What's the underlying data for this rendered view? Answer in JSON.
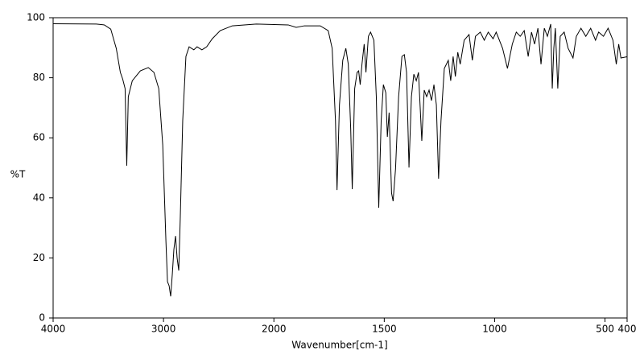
{
  "chart_data": {
    "type": "line",
    "xlabel": "Wavenumber[cm-1]",
    "ylabel": "%T",
    "xlim": [
      4000,
      400
    ],
    "ylim": [
      0,
      100
    ],
    "x_scale_change": {
      "at": 2000,
      "ratio": 2
    },
    "xticks": [
      4000,
      3000,
      2000,
      1500,
      1000,
      500,
      400
    ],
    "yticks": [
      0,
      20,
      40,
      60,
      80,
      100
    ],
    "series": [
      {
        "color": "#000000",
        "x": [
          4000,
          3609,
          3536,
          3478,
          3428,
          3391,
          3370,
          3348,
          3333,
          3319,
          3283,
          3210,
          3138,
          3087,
          3043,
          3007,
          2978,
          2964,
          2949,
          2935,
          2920,
          2906,
          2891,
          2877,
          2862,
          2848,
          2826,
          2797,
          2768,
          2725,
          2696,
          2652,
          2609,
          2558,
          2486,
          2377,
          2159,
          1935,
          1899,
          1862,
          1790,
          1754,
          1736,
          1721,
          1714,
          1703,
          1688,
          1674,
          1663,
          1652,
          1645,
          1634,
          1623,
          1616,
          1609,
          1601,
          1591,
          1583,
          1572,
          1562,
          1547,
          1536,
          1525,
          1514,
          1504,
          1493,
          1486,
          1478,
          1467,
          1460,
          1449,
          1435,
          1420,
          1409,
          1399,
          1388,
          1377,
          1366,
          1355,
          1345,
          1330,
          1319,
          1308,
          1297,
          1286,
          1275,
          1264,
          1254,
          1243,
          1228,
          1210,
          1199,
          1188,
          1178,
          1167,
          1156,
          1138,
          1116,
          1101,
          1087,
          1065,
          1047,
          1029,
          1007,
          993,
          964,
          942,
          920,
          902,
          884,
          866,
          848,
          833,
          819,
          804,
          790,
          775,
          761,
          746,
          739,
          732,
          725,
          714,
          703,
          685,
          667,
          645,
          630,
          609,
          587,
          565,
          543,
          529,
          507,
          486,
          464,
          449,
          438,
          428,
          400
        ],
        "values": [
          98,
          97.9,
          97.6,
          96.2,
          89.8,
          81.8,
          79.6,
          76.4,
          50.7,
          73.7,
          79,
          82.3,
          83.4,
          81.8,
          76.4,
          57.6,
          25.5,
          12.1,
          10.7,
          7.2,
          14.7,
          22.8,
          27.3,
          20.1,
          15.8,
          33.5,
          65.7,
          87.1,
          90.3,
          89.3,
          90.3,
          89.3,
          90.3,
          93,
          95.7,
          97.3,
          97.9,
          97.6,
          96.8,
          97.3,
          97.3,
          95.7,
          89.8,
          65.7,
          42.6,
          71,
          85.8,
          89.8,
          84.5,
          63,
          42.9,
          76.4,
          81.8,
          82.3,
          77.7,
          84.5,
          91.2,
          81.8,
          93.8,
          95.2,
          92.5,
          73.7,
          36.7,
          65.7,
          77.7,
          75,
          60.3,
          68.4,
          41.6,
          38.9,
          49.6,
          73.7,
          87.1,
          87.7,
          81.8,
          50.1,
          73.7,
          81.2,
          79,
          81.8,
          59,
          75.9,
          73.7,
          75.9,
          72.4,
          77.7,
          71,
          46.4,
          65.7,
          83.1,
          85.8,
          79,
          87.1,
          80.4,
          88.5,
          84.5,
          92.5,
          94.4,
          85.8,
          93.8,
          95.2,
          92.5,
          95.2,
          93,
          95.2,
          89.8,
          83.1,
          91.2,
          95.2,
          93.8,
          95.7,
          87.1,
          95.2,
          91.2,
          96.5,
          84.5,
          96.5,
          93.8,
          97.9,
          76.4,
          89.8,
          96.5,
          76.4,
          93.8,
          95.2,
          89.8,
          86.6,
          93.8,
          96.5,
          93.8,
          96.5,
          92.5,
          95.2,
          93.8,
          96.5,
          92.5,
          84.5,
          91.2,
          86.6,
          87
        ]
      }
    ]
  }
}
